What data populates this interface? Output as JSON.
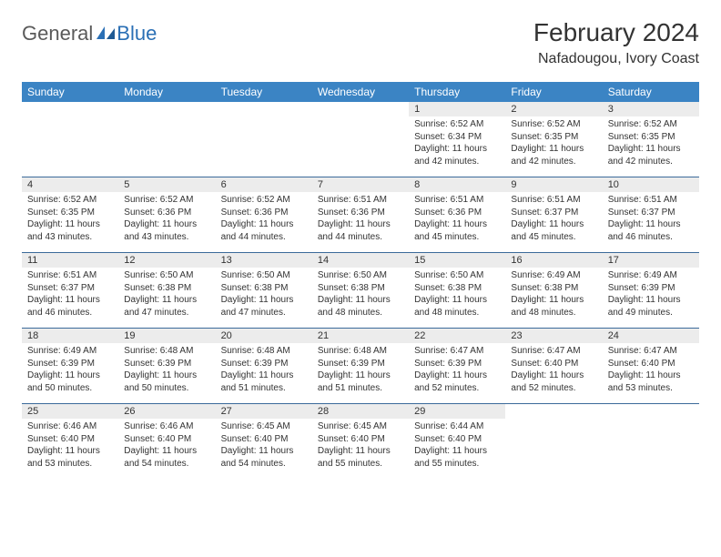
{
  "logo": {
    "text1": "General",
    "text2": "Blue"
  },
  "title": "February 2024",
  "subtitle": "Nafadougou, Ivory Coast",
  "colors": {
    "header_bg": "#3b84c4",
    "header_text": "#ffffff",
    "daynum_bg": "#ececec",
    "week_border": "#3b6a9a",
    "logo_gray": "#5a5a5a",
    "logo_blue": "#2a6fb5"
  },
  "day_names": [
    "Sunday",
    "Monday",
    "Tuesday",
    "Wednesday",
    "Thursday",
    "Friday",
    "Saturday"
  ],
  "weeks": [
    [
      null,
      null,
      null,
      null,
      {
        "n": "1",
        "sr": "Sunrise: 6:52 AM",
        "ss": "Sunset: 6:34 PM",
        "d1": "Daylight: 11 hours",
        "d2": "and 42 minutes."
      },
      {
        "n": "2",
        "sr": "Sunrise: 6:52 AM",
        "ss": "Sunset: 6:35 PM",
        "d1": "Daylight: 11 hours",
        "d2": "and 42 minutes."
      },
      {
        "n": "3",
        "sr": "Sunrise: 6:52 AM",
        "ss": "Sunset: 6:35 PM",
        "d1": "Daylight: 11 hours",
        "d2": "and 42 minutes."
      }
    ],
    [
      {
        "n": "4",
        "sr": "Sunrise: 6:52 AM",
        "ss": "Sunset: 6:35 PM",
        "d1": "Daylight: 11 hours",
        "d2": "and 43 minutes."
      },
      {
        "n": "5",
        "sr": "Sunrise: 6:52 AM",
        "ss": "Sunset: 6:36 PM",
        "d1": "Daylight: 11 hours",
        "d2": "and 43 minutes."
      },
      {
        "n": "6",
        "sr": "Sunrise: 6:52 AM",
        "ss": "Sunset: 6:36 PM",
        "d1": "Daylight: 11 hours",
        "d2": "and 44 minutes."
      },
      {
        "n": "7",
        "sr": "Sunrise: 6:51 AM",
        "ss": "Sunset: 6:36 PM",
        "d1": "Daylight: 11 hours",
        "d2": "and 44 minutes."
      },
      {
        "n": "8",
        "sr": "Sunrise: 6:51 AM",
        "ss": "Sunset: 6:36 PM",
        "d1": "Daylight: 11 hours",
        "d2": "and 45 minutes."
      },
      {
        "n": "9",
        "sr": "Sunrise: 6:51 AM",
        "ss": "Sunset: 6:37 PM",
        "d1": "Daylight: 11 hours",
        "d2": "and 45 minutes."
      },
      {
        "n": "10",
        "sr": "Sunrise: 6:51 AM",
        "ss": "Sunset: 6:37 PM",
        "d1": "Daylight: 11 hours",
        "d2": "and 46 minutes."
      }
    ],
    [
      {
        "n": "11",
        "sr": "Sunrise: 6:51 AM",
        "ss": "Sunset: 6:37 PM",
        "d1": "Daylight: 11 hours",
        "d2": "and 46 minutes."
      },
      {
        "n": "12",
        "sr": "Sunrise: 6:50 AM",
        "ss": "Sunset: 6:38 PM",
        "d1": "Daylight: 11 hours",
        "d2": "and 47 minutes."
      },
      {
        "n": "13",
        "sr": "Sunrise: 6:50 AM",
        "ss": "Sunset: 6:38 PM",
        "d1": "Daylight: 11 hours",
        "d2": "and 47 minutes."
      },
      {
        "n": "14",
        "sr": "Sunrise: 6:50 AM",
        "ss": "Sunset: 6:38 PM",
        "d1": "Daylight: 11 hours",
        "d2": "and 48 minutes."
      },
      {
        "n": "15",
        "sr": "Sunrise: 6:50 AM",
        "ss": "Sunset: 6:38 PM",
        "d1": "Daylight: 11 hours",
        "d2": "and 48 minutes."
      },
      {
        "n": "16",
        "sr": "Sunrise: 6:49 AM",
        "ss": "Sunset: 6:38 PM",
        "d1": "Daylight: 11 hours",
        "d2": "and 48 minutes."
      },
      {
        "n": "17",
        "sr": "Sunrise: 6:49 AM",
        "ss": "Sunset: 6:39 PM",
        "d1": "Daylight: 11 hours",
        "d2": "and 49 minutes."
      }
    ],
    [
      {
        "n": "18",
        "sr": "Sunrise: 6:49 AM",
        "ss": "Sunset: 6:39 PM",
        "d1": "Daylight: 11 hours",
        "d2": "and 50 minutes."
      },
      {
        "n": "19",
        "sr": "Sunrise: 6:48 AM",
        "ss": "Sunset: 6:39 PM",
        "d1": "Daylight: 11 hours",
        "d2": "and 50 minutes."
      },
      {
        "n": "20",
        "sr": "Sunrise: 6:48 AM",
        "ss": "Sunset: 6:39 PM",
        "d1": "Daylight: 11 hours",
        "d2": "and 51 minutes."
      },
      {
        "n": "21",
        "sr": "Sunrise: 6:48 AM",
        "ss": "Sunset: 6:39 PM",
        "d1": "Daylight: 11 hours",
        "d2": "and 51 minutes."
      },
      {
        "n": "22",
        "sr": "Sunrise: 6:47 AM",
        "ss": "Sunset: 6:39 PM",
        "d1": "Daylight: 11 hours",
        "d2": "and 52 minutes."
      },
      {
        "n": "23",
        "sr": "Sunrise: 6:47 AM",
        "ss": "Sunset: 6:40 PM",
        "d1": "Daylight: 11 hours",
        "d2": "and 52 minutes."
      },
      {
        "n": "24",
        "sr": "Sunrise: 6:47 AM",
        "ss": "Sunset: 6:40 PM",
        "d1": "Daylight: 11 hours",
        "d2": "and 53 minutes."
      }
    ],
    [
      {
        "n": "25",
        "sr": "Sunrise: 6:46 AM",
        "ss": "Sunset: 6:40 PM",
        "d1": "Daylight: 11 hours",
        "d2": "and 53 minutes."
      },
      {
        "n": "26",
        "sr": "Sunrise: 6:46 AM",
        "ss": "Sunset: 6:40 PM",
        "d1": "Daylight: 11 hours",
        "d2": "and 54 minutes."
      },
      {
        "n": "27",
        "sr": "Sunrise: 6:45 AM",
        "ss": "Sunset: 6:40 PM",
        "d1": "Daylight: 11 hours",
        "d2": "and 54 minutes."
      },
      {
        "n": "28",
        "sr": "Sunrise: 6:45 AM",
        "ss": "Sunset: 6:40 PM",
        "d1": "Daylight: 11 hours",
        "d2": "and 55 minutes."
      },
      {
        "n": "29",
        "sr": "Sunrise: 6:44 AM",
        "ss": "Sunset: 6:40 PM",
        "d1": "Daylight: 11 hours",
        "d2": "and 55 minutes."
      },
      null,
      null
    ]
  ]
}
